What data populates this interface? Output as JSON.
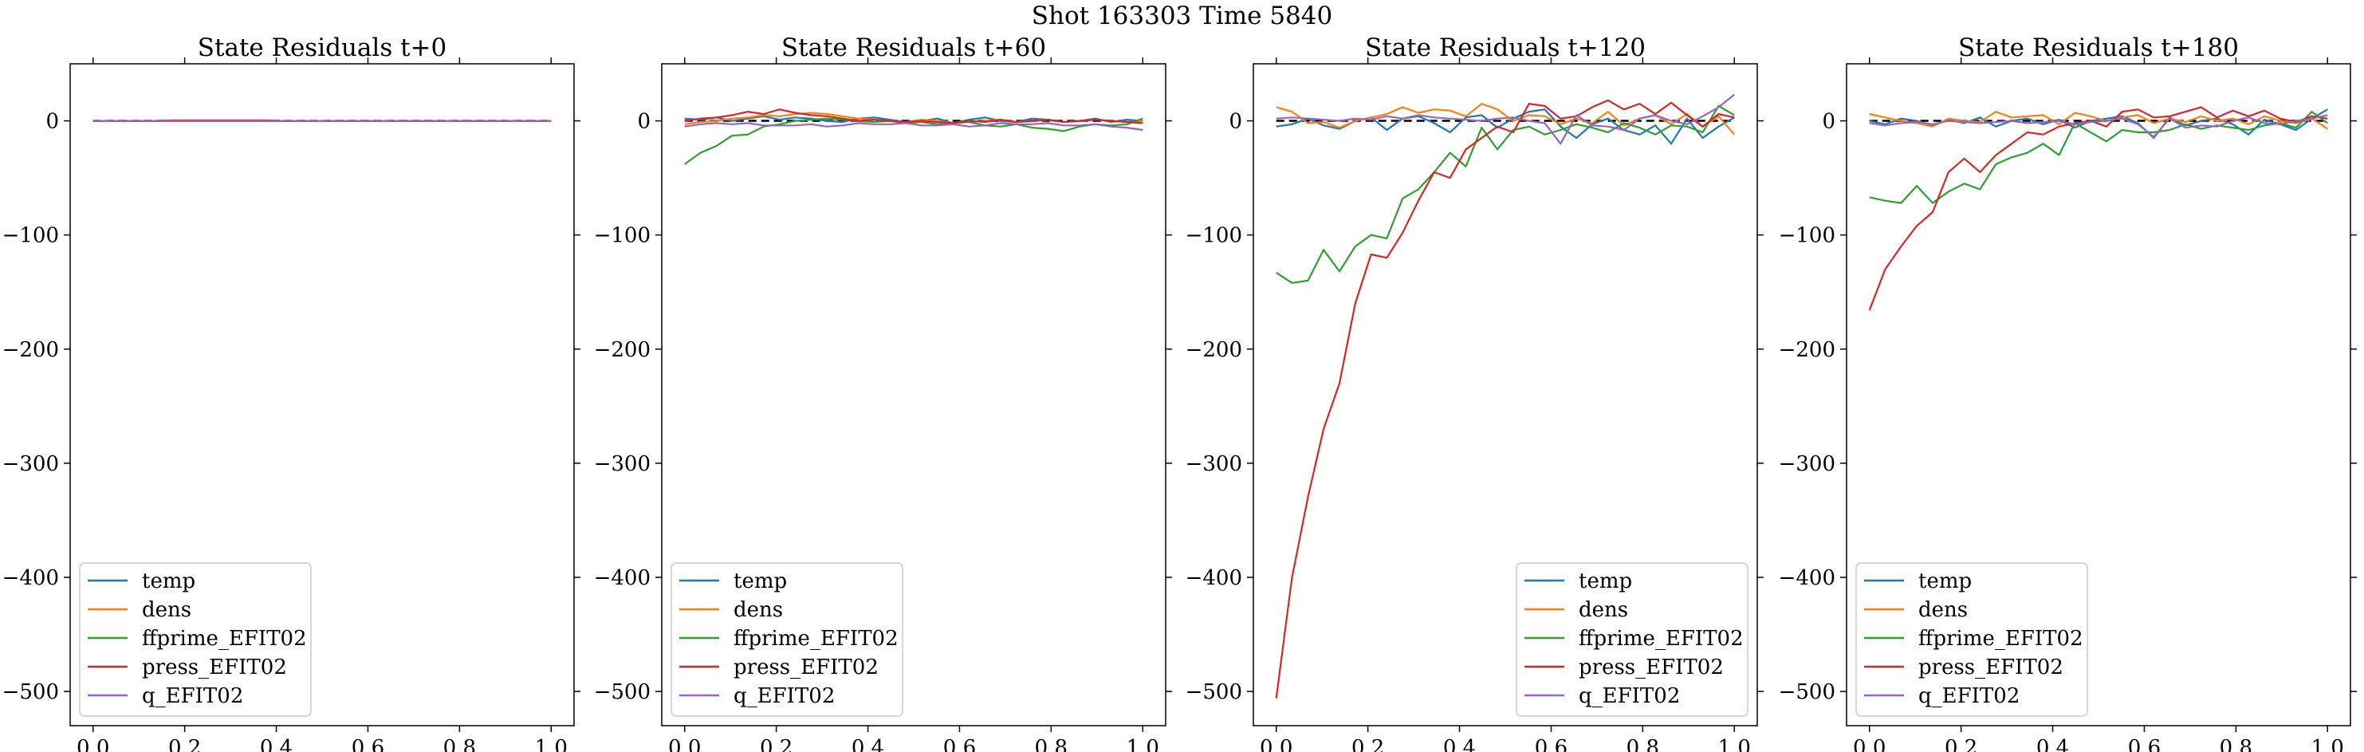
{
  "figure": {
    "suptitle": "Shot 163303   Time 5840"
  },
  "colors": {
    "temp": "#1f77b4",
    "dens": "#ff7f0e",
    "ffprime_EFIT02": "#2ca02c",
    "press_EFIT02": "#d62728",
    "q_EFIT02": "#9467bd",
    "zero_line": "#000000"
  },
  "chart_data": [
    {
      "type": "line",
      "title": "State Residuals t+0",
      "xlabel": "",
      "ylabel": "",
      "xlim": [
        -0.05,
        1.05
      ],
      "ylim": [
        -530,
        50
      ],
      "xticks": [
        "0.0",
        "0.2",
        "0.4",
        "0.6",
        "0.8",
        "1.0"
      ],
      "yticks": [
        "0",
        "−100",
        "−200",
        "−300",
        "−400",
        "−500"
      ],
      "grid": false,
      "legend_position": "lower-left",
      "legend": [
        "temp",
        "dens",
        "ffprime_EFIT02",
        "press_EFIT02",
        "q_EFIT02"
      ],
      "x": [
        0.0,
        0.0345,
        0.069,
        0.1034,
        0.1379,
        0.1724,
        0.2069,
        0.2414,
        0.2759,
        0.3103,
        0.3448,
        0.3793,
        0.4138,
        0.4483,
        0.4828,
        0.5172,
        0.5517,
        0.5862,
        0.6207,
        0.6552,
        0.6897,
        0.7241,
        0.7586,
        0.7931,
        0.8276,
        0.8621,
        0.8966,
        0.931,
        0.9655,
        1.0
      ],
      "series": [
        {
          "name": "temp",
          "values": [
            0,
            0,
            0,
            0,
            0,
            0,
            0,
            0,
            0,
            0,
            0,
            0,
            0,
            0,
            0,
            0,
            0,
            0,
            0,
            0,
            0,
            0,
            0,
            0,
            0,
            0,
            0,
            0,
            0,
            0
          ]
        },
        {
          "name": "dens",
          "values": [
            0,
            0,
            0,
            0,
            0,
            0,
            0,
            0,
            0,
            0,
            0,
            0,
            0,
            0,
            0,
            0,
            0,
            0,
            0,
            0,
            0,
            0,
            0,
            0,
            0,
            0,
            0,
            0,
            0,
            0
          ]
        },
        {
          "name": "ffprime_EFIT02",
          "values": [
            0,
            0,
            0,
            0,
            0,
            0,
            0,
            0,
            0,
            0,
            0,
            0,
            0,
            0,
            0,
            0,
            0,
            0,
            0,
            0,
            0,
            0,
            0,
            0,
            0,
            0,
            0,
            0,
            0,
            0
          ]
        },
        {
          "name": "press_EFIT02",
          "values": [
            0,
            0,
            0,
            0,
            0,
            0.5,
            0.5,
            0.5,
            0.5,
            0.5,
            0.5,
            0.5,
            0,
            0,
            0,
            0,
            0,
            0,
            0,
            0,
            0,
            0,
            0,
            0,
            0,
            0,
            0,
            0,
            0,
            0
          ]
        },
        {
          "name": "q_EFIT02",
          "values": [
            0,
            0,
            0,
            0,
            0,
            0,
            0,
            0,
            0,
            0,
            0,
            0,
            0,
            0,
            0,
            0,
            0,
            0,
            0,
            0,
            0,
            0,
            0,
            0,
            0,
            0,
            0,
            0,
            0,
            0
          ]
        }
      ]
    },
    {
      "type": "line",
      "title": "State Residuals t+60",
      "xlabel": "",
      "ylabel": "",
      "xlim": [
        -0.05,
        1.05
      ],
      "ylim": [
        -530,
        50
      ],
      "xticks": [
        "0.0",
        "0.2",
        "0.4",
        "0.6",
        "0.8",
        "1.0"
      ],
      "yticks": [
        "0",
        "−100",
        "−200",
        "−300",
        "−400",
        "−500"
      ],
      "grid": false,
      "legend_position": "lower-left",
      "legend": [
        "temp",
        "dens",
        "ffprime_EFIT02",
        "press_EFIT02",
        "q_EFIT02"
      ],
      "x": [
        0.0,
        0.0345,
        0.069,
        0.1034,
        0.1379,
        0.1724,
        0.2069,
        0.2414,
        0.2759,
        0.3103,
        0.3448,
        0.3793,
        0.4138,
        0.4483,
        0.4828,
        0.5172,
        0.5517,
        0.5862,
        0.6207,
        0.6552,
        0.6897,
        0.7241,
        0.7586,
        0.7931,
        0.8276,
        0.8621,
        0.8966,
        0.931,
        0.9655,
        1.0
      ],
      "series": [
        {
          "name": "temp",
          "values": [
            2,
            1,
            3,
            0,
            2,
            4,
            1,
            3,
            2,
            0,
            -1,
            2,
            3,
            1,
            -1,
            0,
            2,
            -2,
            1,
            3,
            0,
            -1,
            2,
            1,
            -1,
            0,
            2,
            -1,
            1,
            0
          ]
        },
        {
          "name": "dens",
          "values": [
            -3,
            -1,
            0,
            2,
            3,
            5,
            4,
            6,
            7,
            6,
            4,
            2,
            1,
            0,
            -1,
            1,
            0,
            -2,
            -1,
            0,
            1,
            -1,
            0,
            1,
            -1,
            0,
            1,
            0,
            -1,
            0
          ]
        },
        {
          "name": "ffprime_EFIT02",
          "values": [
            -38,
            -28,
            -22,
            -13,
            -12,
            -5,
            -3,
            0,
            1,
            2,
            1,
            0,
            -1,
            0,
            -2,
            -1,
            -3,
            -2,
            -1,
            -4,
            -5,
            -3,
            -6,
            -7,
            -9,
            -5,
            -3,
            -4,
            -3,
            2
          ]
        },
        {
          "name": "press_EFIT02",
          "values": [
            0,
            2,
            3,
            5,
            8,
            6,
            10,
            7,
            5,
            4,
            2,
            0,
            1,
            0,
            -1,
            0,
            -1,
            -2,
            0,
            -1,
            1,
            -1,
            0,
            1,
            -1,
            0,
            1,
            0,
            -1,
            -2
          ]
        },
        {
          "name": "q_EFIT02",
          "values": [
            -5,
            -3,
            -2,
            -3,
            -2,
            -4,
            -4,
            -4,
            -3,
            -5,
            -4,
            -2,
            -3,
            -3,
            -2,
            -4,
            -4,
            -3,
            -5,
            -4,
            -2,
            -3,
            -3,
            -2,
            -4,
            -4,
            -3,
            -5,
            -6,
            -8
          ]
        }
      ]
    },
    {
      "type": "line",
      "title": "State Residuals t+120",
      "xlabel": "",
      "ylabel": "",
      "xlim": [
        -0.05,
        1.05
      ],
      "ylim": [
        -530,
        50
      ],
      "xticks": [
        "0.0",
        "0.2",
        "0.4",
        "0.6",
        "0.8",
        "1.0"
      ],
      "yticks": [
        "0",
        "−100",
        "−200",
        "−300",
        "−400",
        "−500"
      ],
      "grid": false,
      "legend_position": "lower-right",
      "legend": [
        "temp",
        "dens",
        "ffprime_EFIT02",
        "press_EFIT02",
        "q_EFIT02"
      ],
      "x": [
        0.0,
        0.0345,
        0.069,
        0.1034,
        0.1379,
        0.1724,
        0.2069,
        0.2414,
        0.2759,
        0.3103,
        0.3448,
        0.3793,
        0.4138,
        0.4483,
        0.4828,
        0.5172,
        0.5517,
        0.5862,
        0.6207,
        0.6552,
        0.6897,
        0.7241,
        0.7586,
        0.7931,
        0.8276,
        0.8621,
        0.8966,
        0.931,
        0.9655,
        1.0
      ],
      "series": [
        {
          "name": "temp",
          "values": [
            -5,
            -3,
            2,
            -4,
            -7,
            0,
            3,
            -8,
            2,
            4,
            -2,
            -10,
            3,
            5,
            -6,
            2,
            8,
            10,
            -5,
            -15,
            -3,
            2,
            -8,
            -12,
            -4,
            -20,
            2,
            -15,
            -5,
            3
          ]
        },
        {
          "name": "dens",
          "values": [
            12,
            8,
            -2,
            -1,
            -6,
            0,
            3,
            6,
            12,
            7,
            10,
            9,
            4,
            15,
            10,
            0,
            5,
            4,
            -3,
            2,
            -2,
            8,
            -4,
            2,
            5,
            -3,
            6,
            -5,
            4,
            -12
          ]
        },
        {
          "name": "ffprime_EFIT02",
          "values": [
            -133,
            -142,
            -140,
            -113,
            -132,
            -110,
            -100,
            -103,
            -68,
            -60,
            -45,
            -28,
            -40,
            -6,
            -25,
            -8,
            -5,
            -12,
            -8,
            -3,
            -6,
            -10,
            -2,
            -6,
            -12,
            -4,
            -5,
            -10,
            13,
            5
          ]
        },
        {
          "name": "press_EFIT02",
          "values": [
            -506,
            -400,
            -330,
            -270,
            -230,
            -160,
            -117,
            -120,
            -98,
            -70,
            -45,
            -50,
            -25,
            -15,
            -5,
            -10,
            15,
            13,
            2,
            4,
            12,
            18,
            10,
            15,
            6,
            16,
            5,
            -5,
            6,
            3
          ]
        },
        {
          "name": "q_EFIT02",
          "values": [
            2,
            3,
            2,
            1,
            0,
            2,
            1,
            4,
            2,
            5,
            3,
            2,
            1,
            0,
            2,
            3,
            0,
            -2,
            -20,
            5,
            -4,
            -5,
            -8,
            2,
            5,
            0,
            -3,
            4,
            12,
            23
          ]
        }
      ]
    },
    {
      "type": "line",
      "title": "State Residuals t+180",
      "xlabel": "",
      "ylabel": "",
      "xlim": [
        -0.05,
        1.05
      ],
      "ylim": [
        -530,
        50
      ],
      "xticks": [
        "0.0",
        "0.2",
        "0.4",
        "0.6",
        "0.8",
        "1.0"
      ],
      "yticks": [
        "0",
        "−100",
        "−200",
        "−300",
        "−400",
        "−500"
      ],
      "grid": false,
      "legend_position": "lower-left",
      "legend": [
        "temp",
        "dens",
        "ffprime_EFIT02",
        "press_EFIT02",
        "q_EFIT02"
      ],
      "x": [
        0.0,
        0.0345,
        0.069,
        0.1034,
        0.1379,
        0.1724,
        0.2069,
        0.2414,
        0.2759,
        0.3103,
        0.3448,
        0.3793,
        0.4138,
        0.4483,
        0.4828,
        0.5172,
        0.5517,
        0.5862,
        0.6207,
        0.6552,
        0.6897,
        0.7241,
        0.7586,
        0.7931,
        0.8276,
        0.8621,
        0.8966,
        0.931,
        0.9655,
        1.0
      ],
      "series": [
        {
          "name": "temp",
          "values": [
            0,
            -3,
            2,
            0,
            -4,
            1,
            -2,
            3,
            -5,
            0,
            2,
            -3,
            1,
            -6,
            0,
            2,
            4,
            -2,
            -15,
            3,
            -4,
            0,
            2,
            -3,
            -12,
            1,
            -3,
            -8,
            2,
            10
          ]
        },
        {
          "name": "dens",
          "values": [
            6,
            3,
            0,
            -2,
            -5,
            2,
            0,
            -1,
            8,
            3,
            4,
            5,
            -3,
            7,
            4,
            0,
            3,
            5,
            -2,
            2,
            -1,
            4,
            0,
            2,
            -3,
            4,
            0,
            -2,
            2,
            -7
          ]
        },
        {
          "name": "ffprime_EFIT02",
          "values": [
            -67,
            -70,
            -72,
            -57,
            -72,
            -62,
            -55,
            -60,
            -38,
            -32,
            -28,
            -20,
            -30,
            -2,
            -10,
            -18,
            -8,
            -10,
            -10,
            -8,
            -3,
            -7,
            -4,
            -6,
            -8,
            -4,
            -2,
            -6,
            8,
            -2
          ]
        },
        {
          "name": "press_EFIT02",
          "values": [
            -166,
            -130,
            -110,
            -92,
            -80,
            -45,
            -33,
            -45,
            -30,
            -20,
            -10,
            -12,
            -5,
            -2,
            0,
            -5,
            8,
            10,
            3,
            4,
            8,
            12,
            3,
            9,
            4,
            9,
            2,
            -1,
            4,
            2
          ]
        },
        {
          "name": "q_EFIT02",
          "values": [
            -2,
            -4,
            -2,
            -1,
            -3,
            0,
            -1,
            -2,
            -1,
            0,
            -2,
            -1,
            0,
            -3,
            -1,
            0,
            2,
            -3,
            -14,
            2,
            -6,
            -4,
            -5,
            0,
            3,
            -2,
            -3,
            0,
            2,
            5
          ]
        }
      ]
    }
  ]
}
